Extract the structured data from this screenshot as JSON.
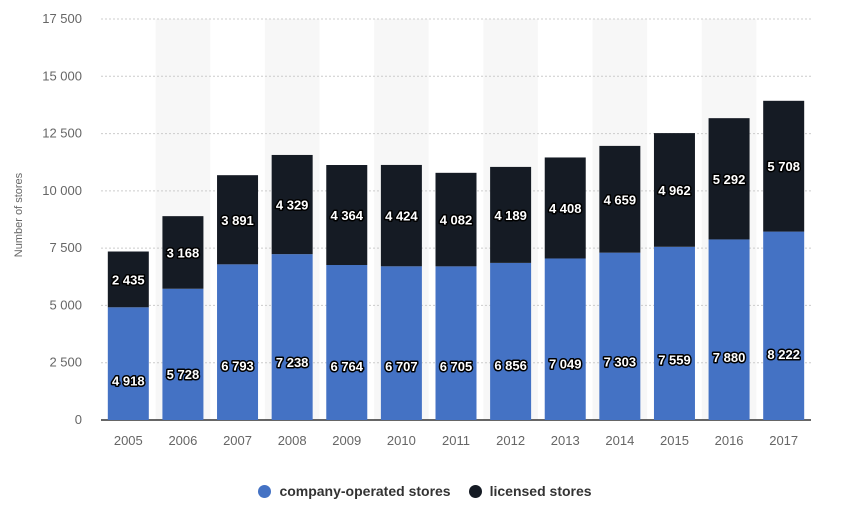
{
  "chart_data": {
    "type": "bar",
    "stacked": true,
    "categories": [
      "2005",
      "2006",
      "2007",
      "2008",
      "2009",
      "2010",
      "2011",
      "2012",
      "2013",
      "2014",
      "2015",
      "2016",
      "2017"
    ],
    "series": [
      {
        "name": "company-operated stores",
        "color": "#4472c4",
        "values": [
          4918,
          5728,
          6793,
          7238,
          6764,
          6707,
          6705,
          6856,
          7049,
          7303,
          7559,
          7880,
          8222
        ],
        "labels": [
          "4 918",
          "5 728",
          "6 793",
          "7 238",
          "6 764",
          "6 707",
          "6 705",
          "6 856",
          "7 049",
          "7 303",
          "7 559",
          "7 880",
          "8 222"
        ]
      },
      {
        "name": "licensed stores",
        "color": "#151b24",
        "values": [
          2435,
          3168,
          3891,
          4329,
          4364,
          4424,
          4082,
          4189,
          4408,
          4659,
          4962,
          5292,
          5708
        ],
        "labels": [
          "2 435",
          "3 168",
          "3 891",
          "4 329",
          "4 364",
          "4 424",
          "4 082",
          "4 189",
          "4 408",
          "4 659",
          "4 962",
          "5 292",
          "5 708"
        ]
      }
    ],
    "ylabel": "Number of stores",
    "ylim": [
      0,
      17500
    ],
    "yticks": [
      0,
      2500,
      5000,
      7500,
      10000,
      12500,
      15000,
      17500
    ],
    "ytick_labels": [
      "0",
      "2 500",
      "5 000",
      "7 500",
      "10 000",
      "12 500",
      "15 000",
      "17 500"
    ],
    "grid": true,
    "legend_position": "bottom-center"
  }
}
